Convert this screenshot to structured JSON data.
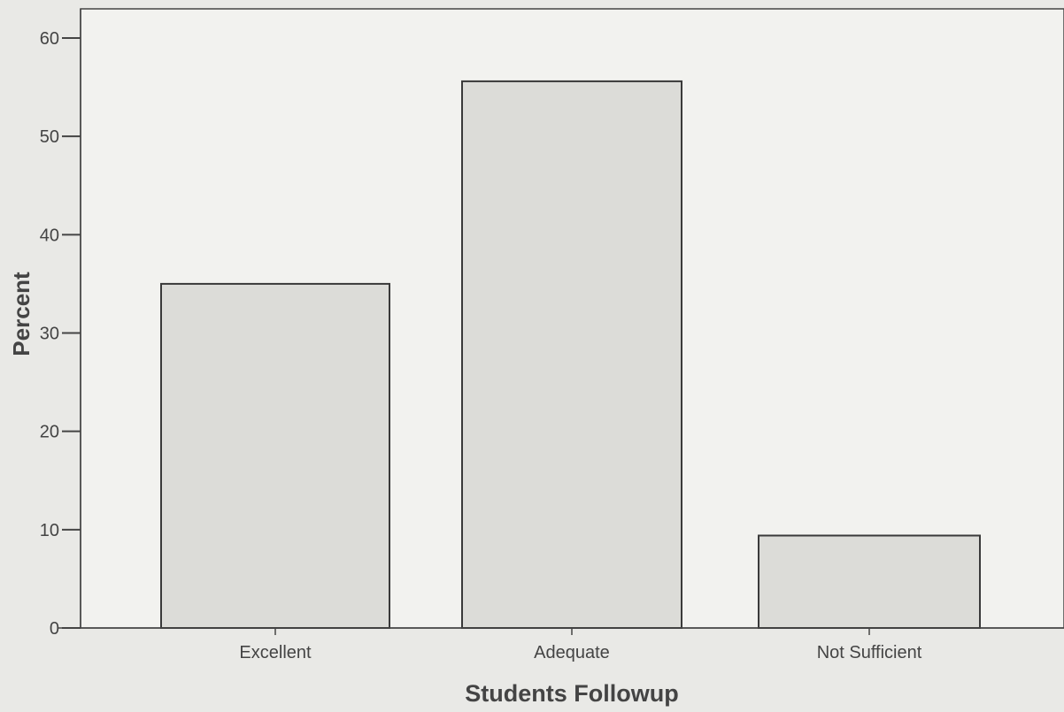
{
  "chart_data": {
    "type": "bar",
    "categories": [
      "Excellent",
      "Adequate",
      "Not Sufficient"
    ],
    "values": [
      35.0,
      55.6,
      9.4
    ],
    "xlabel": "Students Followup",
    "ylabel": "Percent",
    "ylim": [
      0,
      60
    ],
    "yticks": [
      "0",
      "10",
      "20",
      "30",
      "40",
      "50",
      "60"
    ],
    "grid": false,
    "legend": "none",
    "colors": {
      "bar_fill": "#dcdcd8",
      "bar_stroke": "#3a3a3a",
      "axis": "#444444",
      "background": "#e9e9e6",
      "plot_background": "#f2f2ef",
      "text": "#444444"
    }
  }
}
